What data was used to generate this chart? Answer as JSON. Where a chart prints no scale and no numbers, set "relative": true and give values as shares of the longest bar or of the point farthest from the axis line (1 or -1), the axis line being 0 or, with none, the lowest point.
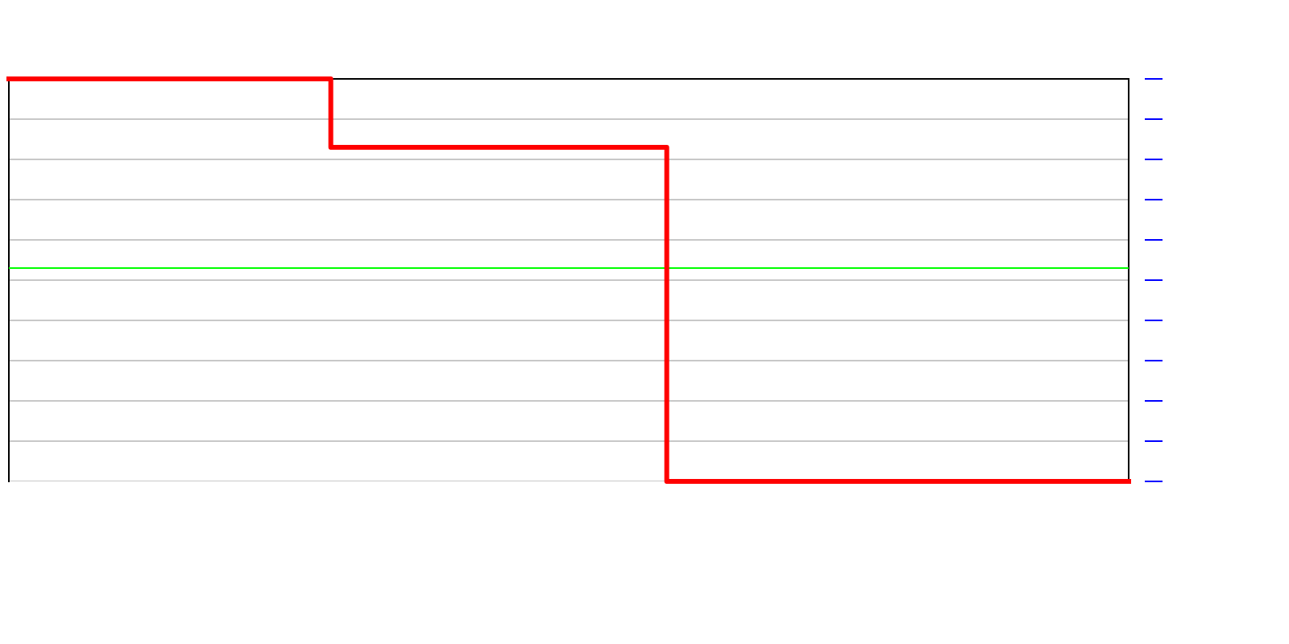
{
  "chart_data": {
    "type": "step",
    "relative": true,
    "categories": [
      null,
      null,
      null,
      null,
      null,
      null,
      null,
      null,
      null,
      null,
      null,
      null,
      null,
      null,
      null,
      null,
      null,
      null,
      null,
      null,
      null,
      null,
      null,
      null,
      null,
      null,
      null,
      null,
      null,
      null,
      null,
      null,
      null,
      null,
      null,
      null,
      null,
      null,
      null,
      null,
      null,
      null,
      null,
      null,
      null,
      null,
      null,
      null,
      null,
      null,
      null,
      null,
      null,
      null,
      null,
      null,
      null,
      null,
      null,
      null,
      null,
      null,
      null,
      null,
      null,
      null,
      null,
      null,
      null,
      null,
      null,
      null,
      null,
      null,
      null,
      null,
      null,
      null,
      null,
      null,
      null
    ],
    "values": [
      1,
      1,
      1,
      1,
      1,
      1,
      1,
      1,
      1,
      1,
      1,
      1,
      1,
      1,
      1,
      1,
      1,
      1,
      1,
      1,
      1,
      1,
      1,
      0.83,
      0.83,
      0.83,
      0.83,
      0.83,
      0.83,
      0.83,
      0.83,
      0.83,
      0.83,
      0.83,
      0.83,
      0.83,
      0.83,
      0.83,
      0.83,
      0.83,
      0.83,
      0.83,
      0.83,
      0.83,
      0.83,
      0.83,
      0.83,
      0,
      0,
      0,
      0,
      0,
      0,
      0,
      0,
      0,
      0,
      0,
      0,
      0,
      0,
      0,
      0,
      0,
      0,
      0,
      0,
      0,
      0,
      0,
      0,
      0,
      0,
      0,
      0,
      0,
      0,
      0,
      0,
      0,
      0
    ],
    "color": "#ff0000",
    "ref_lines": [
      {
        "axis": "y",
        "value": 0.53,
        "color": "#00ff00"
      }
    ],
    "grid": "y"
  }
}
